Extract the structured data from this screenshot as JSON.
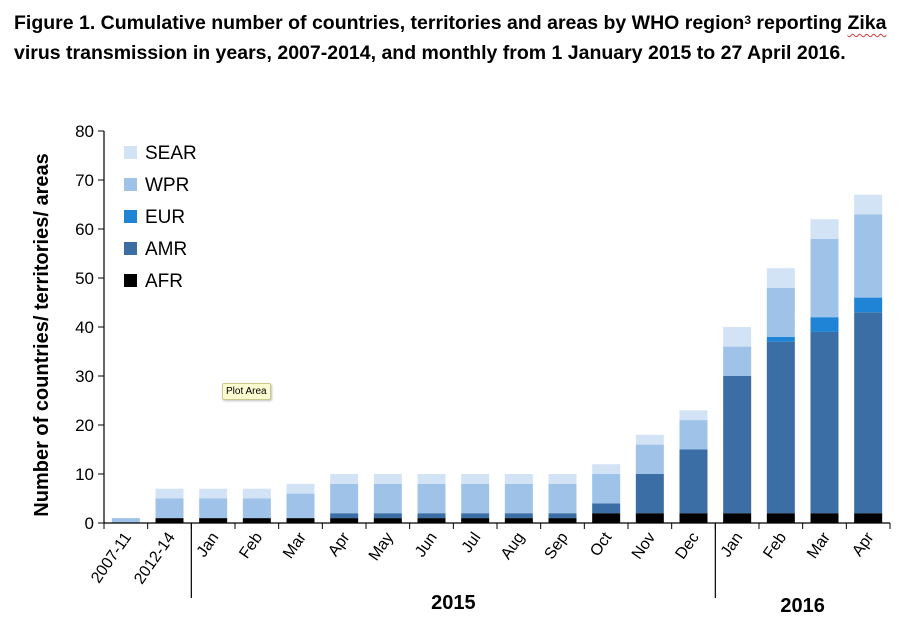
{
  "figure": {
    "title_part1": "Figure 1. Cumulative number of countries, territories and areas by WHO region",
    "title_sup": "3",
    "title_part2": " reporting ",
    "title_zika": "Zika",
    "title_part3": " virus transmission in years, 2007-2014, and monthly from 1 January 2015 to 27 April 2016."
  },
  "tooltip": {
    "label": "Plot Area"
  },
  "chart_data": {
    "type": "bar",
    "stacked": true,
    "title": "",
    "ylabel": "Number of countries/ territories/ areas",
    "xlabel": "",
    "ylim": [
      0,
      80
    ],
    "yticks": [
      0,
      10,
      20,
      30,
      40,
      50,
      60,
      70,
      80
    ],
    "grid": false,
    "legend_position": "top-left",
    "categories": [
      "2007-11",
      "2012-14",
      "Jan",
      "Feb",
      "Mar",
      "Apr",
      "May",
      "Jun",
      "Jul",
      "Aug",
      "Sep",
      "Oct",
      "Nov",
      "Dec",
      "Jan",
      "Feb",
      "Mar",
      "Apr"
    ],
    "year_groups": [
      {
        "label": "2015",
        "start": 2,
        "end": 13
      },
      {
        "label": "2016",
        "start": 14,
        "end": 17
      }
    ],
    "series": [
      {
        "name": "AFR",
        "color": "#000000",
        "values": [
          0,
          1,
          1,
          1,
          1,
          1,
          1,
          1,
          1,
          1,
          1,
          2,
          2,
          2,
          2,
          2,
          2,
          2
        ]
      },
      {
        "name": "AMR",
        "color": "#3b6ea5",
        "values": [
          0,
          0,
          0,
          0,
          0,
          1,
          1,
          1,
          1,
          1,
          1,
          2,
          8,
          13,
          28,
          35,
          37,
          41
        ]
      },
      {
        "name": "EUR",
        "color": "#1f83d6",
        "values": [
          0,
          0,
          0,
          0,
          0,
          0,
          0,
          0,
          0,
          0,
          0,
          0,
          0,
          0,
          0,
          1,
          3,
          3
        ]
      },
      {
        "name": "WPR",
        "color": "#9fc3e8",
        "values": [
          1,
          4,
          4,
          4,
          5,
          6,
          6,
          6,
          6,
          6,
          6,
          6,
          6,
          6,
          6,
          10,
          16,
          17
        ]
      },
      {
        "name": "SEAR",
        "color": "#d3e3f6",
        "values": [
          0,
          2,
          2,
          2,
          2,
          2,
          2,
          2,
          2,
          2,
          2,
          2,
          2,
          2,
          4,
          4,
          4,
          4
        ]
      }
    ],
    "legend_order": [
      "SEAR",
      "WPR",
      "EUR",
      "AMR",
      "AFR"
    ]
  }
}
